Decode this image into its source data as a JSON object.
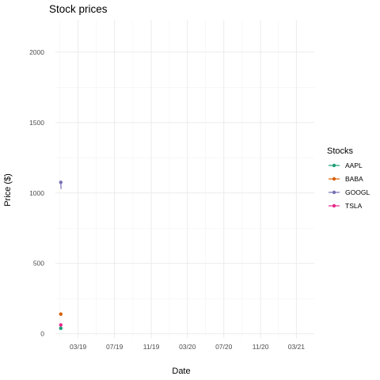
{
  "chart_data": {
    "type": "line",
    "title": "Stock prices",
    "xlabel": "Date",
    "ylabel": "Price ($)",
    "x_ticks": [
      "03/19",
      "07/19",
      "11/19",
      "03/20",
      "07/20",
      "11/20",
      "03/21"
    ],
    "y_ticks": [
      "0",
      "500",
      "1000",
      "1500",
      "2000"
    ],
    "ylim": [
      -30,
      2230
    ],
    "xlim": [
      "2018-12-15",
      "2021-04-30"
    ],
    "legend_title": "Stocks",
    "legend_position": "right",
    "grid": true,
    "series": [
      {
        "name": "AAPL",
        "color": "#1b9e77",
        "points": [
          {
            "x": "2019-01-02",
            "y": 39
          },
          {
            "x": "2019-01-03",
            "y": 36
          }
        ]
      },
      {
        "name": "BABA",
        "color": "#d95f02",
        "points": [
          {
            "x": "2019-01-02",
            "y": 140
          },
          {
            "x": "2019-01-03",
            "y": 137
          }
        ]
      },
      {
        "name": "GOOGL",
        "color": "#7570b3",
        "points": [
          {
            "x": "2019-01-02",
            "y": 1076
          },
          {
            "x": "2019-01-03",
            "y": 1028
          }
        ]
      },
      {
        "name": "TSLA",
        "color": "#e7298a",
        "points": [
          {
            "x": "2019-01-02",
            "y": 63
          },
          {
            "x": "2019-01-03",
            "y": 60
          }
        ]
      }
    ]
  }
}
